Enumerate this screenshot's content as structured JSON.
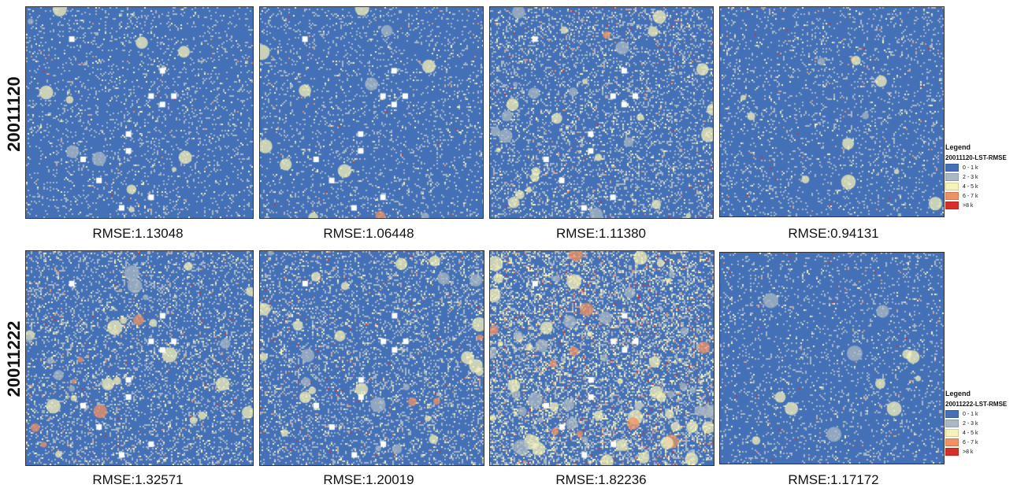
{
  "rows": [
    {
      "date_label": "20011120",
      "panels": [
        {
          "rmse": "RMSE:1.13048",
          "texture": "low",
          "masks": true
        },
        {
          "rmse": "RMSE:1.06448",
          "texture": "low",
          "masks": true
        },
        {
          "rmse": "RMSE:1.11380",
          "texture": "mid",
          "masks": true
        },
        {
          "rmse": "RMSE:0.94131",
          "texture": "low",
          "masks": false
        }
      ],
      "legend": {
        "title": "Legend",
        "layer": "20011120-LST-RMSE",
        "classes": [
          {
            "label": "0 - 1 k",
            "color": "#4470b8"
          },
          {
            "label": "2 - 3 k",
            "color": "#a9b8c4"
          },
          {
            "label": "4 - 5 k",
            "color": "#f6f2b8"
          },
          {
            "label": "6 - 7 k",
            "color": "#ef9163"
          },
          {
            "label": ">8 k",
            "color": "#d7302a"
          }
        ]
      }
    },
    {
      "date_label": "20011222",
      "panels": [
        {
          "rmse": "RMSE:1.32571",
          "texture": "mid",
          "masks": true
        },
        {
          "rmse": "RMSE:1.20019",
          "texture": "mid",
          "masks": true
        },
        {
          "rmse": "RMSE:1.82236",
          "texture": "high",
          "masks": true
        },
        {
          "rmse": "RMSE:1.17172",
          "texture": "low",
          "masks": false
        }
      ],
      "legend": {
        "title": "Legend",
        "layer": "20011222-LST-RMSE",
        "classes": [
          {
            "label": "0 - 1 k",
            "color": "#4470b8"
          },
          {
            "label": "2 - 3 k",
            "color": "#a9b8c4"
          },
          {
            "label": "4 - 5 k",
            "color": "#f6f2b8"
          },
          {
            "label": "6 - 7 k",
            "color": "#ef9163"
          },
          {
            "label": ">8 k",
            "color": "#d7302a"
          }
        ]
      }
    }
  ]
}
